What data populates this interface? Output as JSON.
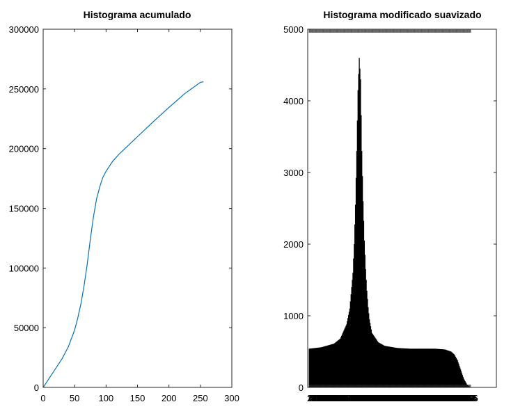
{
  "chart_data": [
    {
      "type": "line",
      "title": "Histograma acumulado",
      "xlabel": "",
      "ylabel": "",
      "xlim": [
        0,
        300
      ],
      "ylim": [
        0,
        300000
      ],
      "xticks": [
        0,
        50,
        100,
        150,
        200,
        250,
        300
      ],
      "yticks": [
        0,
        50000,
        100000,
        150000,
        200000,
        250000,
        300000
      ],
      "grid": false,
      "color": "#0072BD",
      "series": [
        {
          "x": [
            0,
            10,
            20,
            30,
            40,
            50,
            55,
            60,
            65,
            70,
            75,
            80,
            85,
            90,
            95,
            100,
            105,
            110,
            120,
            130,
            140,
            150,
            175,
            200,
            225,
            250,
            255
          ],
          "y": [
            0,
            8000,
            16000,
            24000,
            34000,
            48000,
            58000,
            70000,
            85000,
            103000,
            124000,
            143000,
            158000,
            168000,
            176000,
            181000,
            185000,
            189000,
            195000,
            200000,
            205000,
            210000,
            222500,
            234500,
            246000,
            255500,
            256000
          ]
        }
      ]
    },
    {
      "type": "bar",
      "title": "Histograma modificado suavizado",
      "xlabel": "",
      "ylabel": "",
      "xlim": [
        1,
        256
      ],
      "ylim": [
        0,
        5000
      ],
      "yticks": [
        0,
        1000,
        2000,
        3000,
        4000,
        5000
      ],
      "grid": false,
      "color": "#000000",
      "note_ticks": "x tick labels 1..256 drawn at every bar, overlapping into an unreadable band",
      "series": [
        {
          "x": [
            1,
            20,
            40,
            50,
            60,
            65,
            70,
            72,
            74,
            76,
            78,
            80,
            82,
            84,
            86,
            88,
            90,
            92,
            94,
            96,
            100,
            110,
            120,
            140,
            160,
            180,
            200,
            215,
            225,
            230,
            235,
            240,
            245,
            250,
            256
          ],
          "y": [
            540,
            560,
            610,
            680,
            880,
            1100,
            1600,
            2000,
            2550,
            3300,
            4150,
            4600,
            4300,
            3300,
            2600,
            2050,
            1650,
            1350,
            1120,
            950,
            760,
            630,
            580,
            550,
            540,
            540,
            540,
            530,
            500,
            460,
            380,
            250,
            120,
            40,
            0
          ]
        }
      ]
    }
  ]
}
